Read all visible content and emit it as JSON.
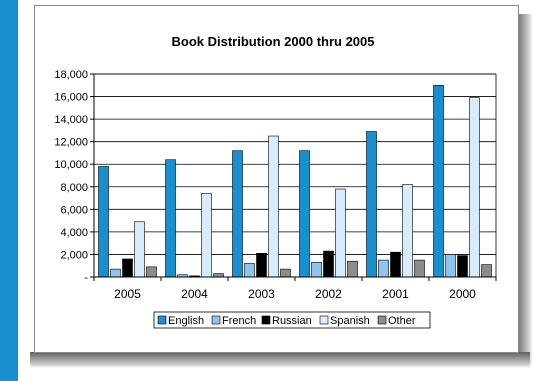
{
  "chart_data": {
    "type": "bar",
    "title": "Book Distribution 2000 thru 2005",
    "categories": [
      "2005",
      "2004",
      "2003",
      "2002",
      "2001",
      "2000"
    ],
    "series": [
      {
        "name": "English",
        "color": "#1a8fd0",
        "values": [
          9800,
          10400,
          11200,
          11200,
          12900,
          17000
        ]
      },
      {
        "name": "French",
        "color": "#8ec4ee",
        "values": [
          700,
          200,
          1200,
          1300,
          1500,
          2000
        ]
      },
      {
        "name": "Russian",
        "color": "#000000",
        "values": [
          1600,
          100,
          2100,
          2300,
          2200,
          1900
        ]
      },
      {
        "name": "Spanish",
        "color": "#d9ecfb",
        "values": [
          4900,
          7400,
          12500,
          7800,
          8200,
          15900
        ]
      },
      {
        "name": "Other",
        "color": "#8c8c8c",
        "values": [
          900,
          300,
          700,
          1400,
          1500,
          1100
        ]
      }
    ],
    "ylim": [
      0,
      18000
    ],
    "yticks": [
      "18,000",
      "16,000",
      "14,000",
      "12,000",
      "10,000",
      "8,000",
      "6,000",
      "4,000",
      "2,000",
      "-"
    ],
    "ytick_values": [
      18000,
      16000,
      14000,
      12000,
      10000,
      8000,
      6000,
      4000,
      2000,
      0
    ],
    "grid": true,
    "legend": "bottom"
  }
}
